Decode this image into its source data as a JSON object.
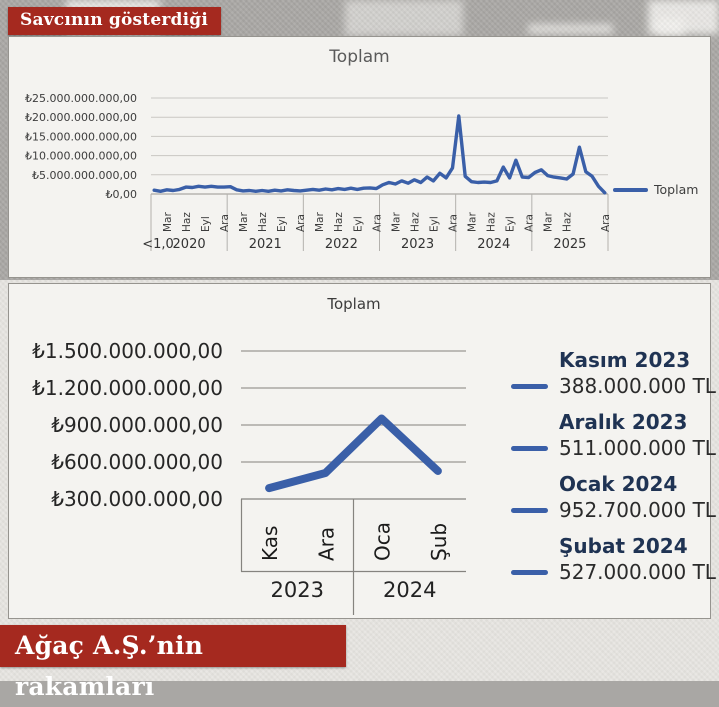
{
  "top_banner": {
    "label": "Savcının gösterdiği"
  },
  "bottom_banner": {
    "label": "Ağaç A.Ş.’nin rakamları"
  },
  "colors": {
    "banner_red": "#a5291f",
    "line_blue": "#3a5fa8",
    "legend_navy": "#1f3353",
    "panel_bg": "#f4f3f0"
  },
  "chart_data": [
    {
      "id": "prosecutor-chart",
      "type": "line",
      "title": "Toplam",
      "legend": [
        "Toplam"
      ],
      "legend_position": "right",
      "grid": true,
      "y_ticks": [
        "₺25.000.000.000,00",
        "₺20.000.000.000,00",
        "₺15.000.000.000,00",
        "₺10.000.000.000,00",
        "₺5.000.000.000,00",
        "₺0,00"
      ],
      "y_tick_values_billion": [
        25,
        20,
        15,
        10,
        5,
        0
      ],
      "ylim_billion": [
        0,
        25
      ],
      "x_axis": {
        "left_note": "<1,0",
        "years": [
          "2020",
          "2021",
          "2022",
          "2023",
          "2024",
          "2025"
        ],
        "month_ticks_per_year": {
          "2020": [
            "Mar",
            "Haz",
            "Eyl",
            "Ara"
          ],
          "2021": [
            "Mar",
            "Haz",
            "Eyl",
            "Ara"
          ],
          "2022": [
            "Mar",
            "Haz",
            "Eyl",
            "Ara"
          ],
          "2023": [
            "Mar",
            "Haz",
            "Eyl",
            "Ara"
          ],
          "2024": [
            "Mar",
            "Haz",
            "Eyl",
            "Ara"
          ],
          "2025": [
            "Mar",
            "Haz",
            "Ara"
          ]
        }
      },
      "series": [
        {
          "name": "Toplam",
          "unit": "billion TL (estimated from plot)",
          "monthly_from": "2020-01",
          "values_billion_tl": [
            1.0,
            0.7,
            1.1,
            0.9,
            1.2,
            1.8,
            1.7,
            2.0,
            1.8,
            2.0,
            1.8,
            1.8,
            1.9,
            1.1,
            0.8,
            0.9,
            0.7,
            0.9,
            0.7,
            1.0,
            0.8,
            1.1,
            0.9,
            0.8,
            1.0,
            1.2,
            1.0,
            1.3,
            1.1,
            1.4,
            1.2,
            1.5,
            1.2,
            1.5,
            1.6,
            1.4,
            2.4,
            3.0,
            2.6,
            3.4,
            2.8,
            3.7,
            3.0,
            4.4,
            3.4,
            5.4,
            4.2,
            6.8,
            20.3,
            4.6,
            3.2,
            3.0,
            3.1,
            3.0,
            3.4,
            7.0,
            4.2,
            8.8,
            4.4,
            4.3,
            5.6,
            6.3,
            4.8,
            4.4,
            4.2,
            3.9,
            5.2,
            12.2,
            5.8,
            4.6,
            2.0,
            0.3
          ]
        }
      ]
    },
    {
      "id": "company-chart",
      "type": "line",
      "title": "Toplam",
      "grid": true,
      "y_ticks": [
        "₺1.500.000.000,00",
        "₺1.200.000.000,00",
        "₺900.000.000,00",
        "₺600.000.000,00",
        "₺300.000.000,00"
      ],
      "y_tick_values_million": [
        1500,
        1200,
        900,
        600,
        300
      ],
      "ylim_million": [
        300,
        1500
      ],
      "categories": [
        "Kas",
        "Ara",
        "Oca",
        "Şub"
      ],
      "category_years": [
        {
          "label": "2023",
          "spans": [
            "Kas",
            "Ara"
          ]
        },
        {
          "label": "2024",
          "spans": [
            "Oca",
            "Şub"
          ]
        }
      ],
      "values_million_tl": [
        388,
        511,
        952.7,
        527
      ],
      "legend_entries": [
        {
          "title": "Kasım 2023",
          "value": "388.000.000 TL"
        },
        {
          "title": "Aralık 2023",
          "value": "511.000.000 TL"
        },
        {
          "title": "Ocak 2024",
          "value": "952.700.000 TL"
        },
        {
          "title": "Şubat 2024",
          "value": "527.000.000 TL"
        }
      ]
    }
  ]
}
